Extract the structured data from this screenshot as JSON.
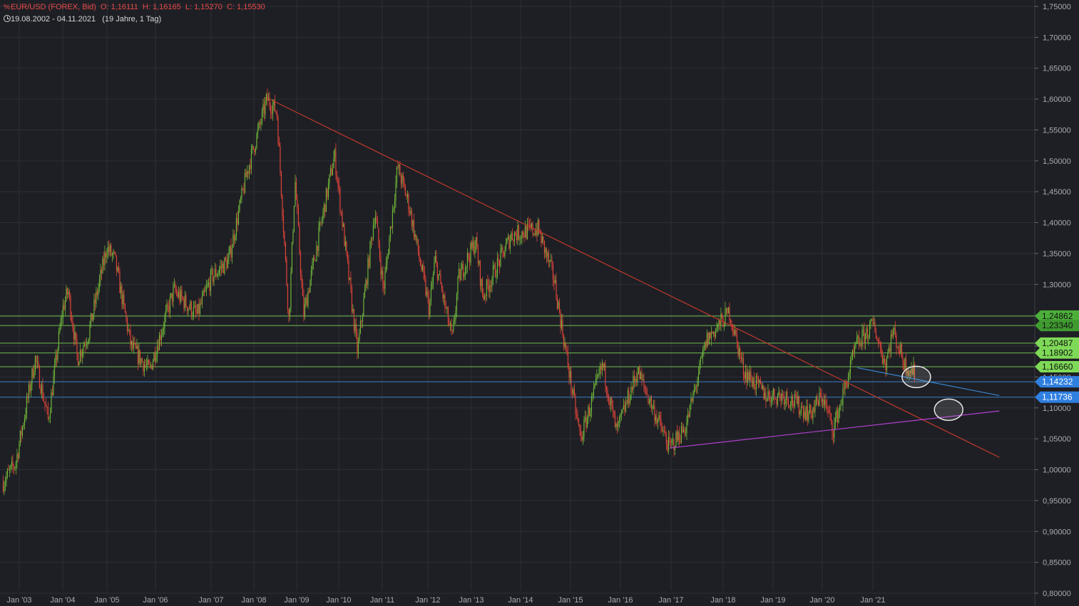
{
  "header": {
    "symbol": "EUR/USD (FOREX, Bid)",
    "open_label": "O:",
    "open": "1,16111",
    "high_label": "H:",
    "high": "1,16165",
    "low_label": "L:",
    "low": "1,15270",
    "close_label": "C:",
    "close": "1,15530",
    "range": "19.08.2002 - 04.11.2021",
    "span": "(19 Jahre, 1 Tag)"
  },
  "colors": {
    "background": "#1e1f24",
    "grid": "#2d2f36",
    "trend_red": "#c0392b",
    "trend_blue": "#3a86d0",
    "trend_purple": "#b13fd1",
    "level_green": "#7ed957",
    "level_blue": "#3f8fe6",
    "candle_up": "#6fb53a",
    "candle_down": "#e0443a"
  },
  "chart_data": {
    "type": "candlestick",
    "x_range": [
      "2002-08-19",
      "2021-11-04"
    ],
    "ylim": [
      0.8,
      1.75
    ],
    "y_ticks": [
      "1,75000",
      "1,70000",
      "1,65000",
      "1,60000",
      "1,55000",
      "1,50000",
      "1,45000",
      "1,40000",
      "1,35000",
      "1,30000",
      "1,25000",
      "1,20000",
      "1,15000",
      "1,10000",
      "1,05000",
      "1,00000",
      "0,95000",
      "0,90000",
      "0,85000",
      "0,80000"
    ],
    "x_ticks": [
      {
        "label": "Jan '03",
        "date": "2003-01-01"
      },
      {
        "label": "Jan '04",
        "date": "2004-01-01"
      },
      {
        "label": "Jan '05",
        "date": "2005-01-01"
      },
      {
        "label": "Jan '06",
        "date": "2006-01-01"
      },
      {
        "label": "Jan '07",
        "date": "2007-01-01"
      },
      {
        "label": "Jan '08",
        "date": "2008-01-01"
      },
      {
        "label": "Jan '09",
        "date": "2009-01-01"
      },
      {
        "label": "Jan '10",
        "date": "2010-01-01"
      },
      {
        "label": "Jan '11",
        "date": "2011-01-01"
      },
      {
        "label": "Jan '12",
        "date": "2012-01-01"
      },
      {
        "label": "Jan '13",
        "date": "2013-01-01"
      },
      {
        "label": "Jan '14",
        "date": "2014-01-01"
      },
      {
        "label": "Jan '15",
        "date": "2015-01-01"
      },
      {
        "label": "Jan '16",
        "date": "2016-01-01"
      },
      {
        "label": "Jan '17",
        "date": "2017-01-01"
      },
      {
        "label": "Jan '18",
        "date": "2018-01-01"
      },
      {
        "label": "Jan '19",
        "date": "2019-01-01"
      },
      {
        "label": "Jan '20",
        "date": "2020-01-01"
      },
      {
        "label": "Jan '21",
        "date": "2021-01-01"
      }
    ],
    "price_path": [
      [
        "2002-08-19",
        0.98
      ],
      [
        "2002-12-01",
        1.01
      ],
      [
        "2003-05-15",
        1.18
      ],
      [
        "2003-09-01",
        1.08
      ],
      [
        "2003-12-31",
        1.26
      ],
      [
        "2004-02-15",
        1.29
      ],
      [
        "2004-05-01",
        1.18
      ],
      [
        "2004-08-01",
        1.22
      ],
      [
        "2004-12-31",
        1.36
      ],
      [
        "2005-03-01",
        1.34
      ],
      [
        "2005-07-01",
        1.2
      ],
      [
        "2005-11-15",
        1.16
      ],
      [
        "2006-05-01",
        1.29
      ],
      [
        "2006-10-01",
        1.25
      ],
      [
        "2007-01-01",
        1.31
      ],
      [
        "2007-06-01",
        1.34
      ],
      [
        "2007-11-01",
        1.48
      ],
      [
        "2008-04-22",
        1.6
      ],
      [
        "2008-07-15",
        1.58
      ],
      [
        "2008-10-27",
        1.24
      ],
      [
        "2008-12-18",
        1.47
      ],
      [
        "2009-03-01",
        1.25
      ],
      [
        "2009-11-25",
        1.51
      ],
      [
        "2010-06-07",
        1.19
      ],
      [
        "2010-11-01",
        1.42
      ],
      [
        "2011-01-10",
        1.29
      ],
      [
        "2011-05-04",
        1.49
      ],
      [
        "2011-08-01",
        1.43
      ],
      [
        "2012-01-13",
        1.26
      ],
      [
        "2012-03-01",
        1.34
      ],
      [
        "2012-07-24",
        1.21
      ],
      [
        "2012-09-15",
        1.31
      ],
      [
        "2013-02-01",
        1.37
      ],
      [
        "2013-03-27",
        1.28
      ],
      [
        "2013-10-25",
        1.38
      ],
      [
        "2014-05-08",
        1.39
      ],
      [
        "2014-09-01",
        1.31
      ],
      [
        "2015-01-26",
        1.11
      ],
      [
        "2015-03-16",
        1.05
      ],
      [
        "2015-08-24",
        1.17
      ],
      [
        "2015-12-03",
        1.06
      ],
      [
        "2016-05-03",
        1.16
      ],
      [
        "2016-12-20",
        1.035
      ],
      [
        "2017-04-15",
        1.07
      ],
      [
        "2017-09-08",
        1.21
      ],
      [
        "2018-02-16",
        1.255
      ],
      [
        "2018-06-01",
        1.16
      ],
      [
        "2018-11-12",
        1.12
      ],
      [
        "2019-04-01",
        1.12
      ],
      [
        "2019-10-01",
        1.09
      ],
      [
        "2020-01-01",
        1.12
      ],
      [
        "2020-03-20",
        1.065
      ],
      [
        "2020-06-10",
        1.13
      ],
      [
        "2020-09-01",
        1.2
      ],
      [
        "2021-01-06",
        1.235
      ],
      [
        "2021-03-31",
        1.17
      ],
      [
        "2021-05-25",
        1.225
      ],
      [
        "2021-08-20",
        1.17
      ],
      [
        "2021-11-04",
        1.155
      ]
    ],
    "horizontal_levels": [
      {
        "value": 1.24862,
        "label": "1,24862",
        "kind": "green"
      },
      {
        "value": 1.2334,
        "label": "1,23340",
        "kind": "green"
      },
      {
        "value": 1.20487,
        "label": "1,20487",
        "kind": "green"
      },
      {
        "value": 1.18902,
        "label": "1,18902",
        "kind": "green"
      },
      {
        "value": 1.1666,
        "label": "1,16660",
        "kind": "green"
      },
      {
        "value": 1.14232,
        "label": "1,14232",
        "kind": "blue"
      },
      {
        "value": 1.11736,
        "label": "1,11736",
        "kind": "blue"
      }
    ],
    "trend_lines": [
      {
        "kind": "red",
        "from": [
          "2008-04-22",
          1.602
        ],
        "to": [
          "2023-07-01",
          1.02
        ]
      },
      {
        "kind": "purple",
        "from": [
          "2016-12-20",
          1.035
        ],
        "to": [
          "2023-07-01",
          1.095
        ]
      },
      {
        "kind": "blue",
        "from": [
          "2020-09-10",
          1.165
        ],
        "to": [
          "2023-07-01",
          1.12
        ]
      }
    ],
    "markers": [
      {
        "date": "2021-11-10",
        "value": 1.15
      },
      {
        "date": "2022-07-01",
        "value": 1.097
      }
    ]
  }
}
